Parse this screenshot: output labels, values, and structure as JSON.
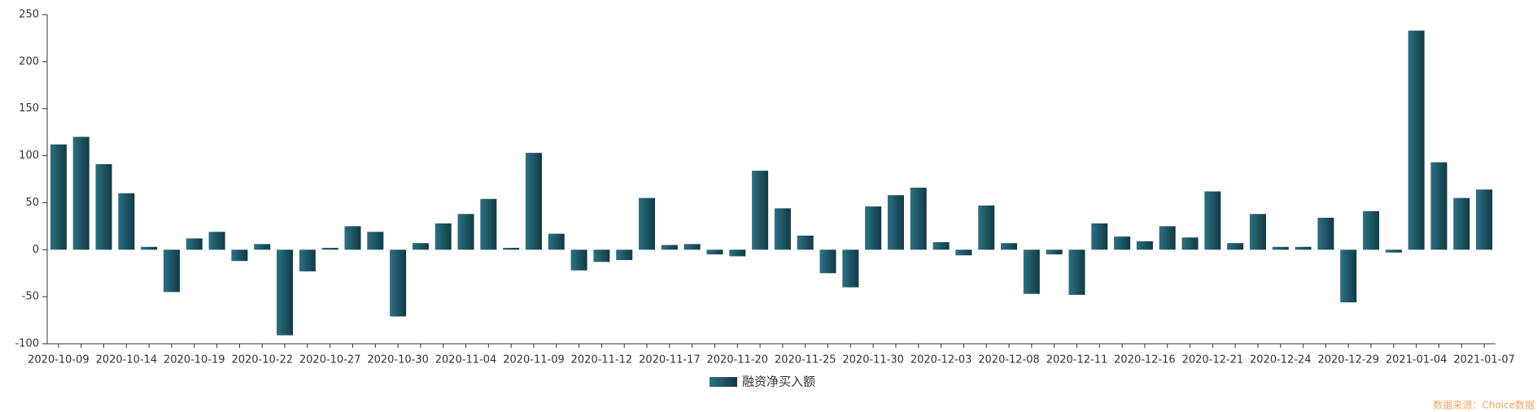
{
  "chart_data": {
    "type": "bar",
    "categories": [
      "2020-10-09",
      null,
      null,
      "2020-10-14",
      null,
      null,
      "2020-10-19",
      null,
      null,
      "2020-10-22",
      null,
      null,
      "2020-10-27",
      null,
      null,
      "2020-10-30",
      null,
      null,
      "2020-11-04",
      null,
      null,
      "2020-11-09",
      null,
      null,
      "2020-11-12",
      null,
      null,
      "2020-11-17",
      null,
      null,
      "2020-11-20",
      null,
      null,
      "2020-11-25",
      null,
      null,
      "2020-11-30",
      null,
      null,
      "2020-12-03",
      null,
      null,
      "2020-12-08",
      null,
      null,
      "2020-12-11",
      null,
      null,
      "2020-12-16",
      null,
      null,
      "2020-12-21",
      null,
      null,
      "2020-12-24",
      null,
      null,
      "2020-12-29",
      null,
      null,
      "2021-01-04",
      null,
      null,
      "2021-01-07"
    ],
    "series": [
      {
        "name": "融资净买入额",
        "color": "#2b7184",
        "values": [
          112,
          120,
          91,
          60,
          3,
          -45,
          12,
          19,
          -12,
          6,
          -91,
          -23,
          2,
          25,
          19,
          -71,
          7,
          28,
          38,
          54,
          2,
          103,
          17,
          -22,
          -13,
          -11,
          55,
          5,
          6,
          -5,
          -7,
          84,
          44,
          15,
          -25,
          -40,
          46,
          58,
          66,
          8,
          -6,
          47,
          7,
          -47,
          -5,
          -48,
          28,
          14,
          9,
          25,
          13,
          62,
          7,
          38,
          3,
          3,
          34,
          -56,
          41,
          -3,
          233,
          93,
          55,
          64
        ]
      }
    ],
    "ylim": [
      -100,
      250
    ],
    "yticks": [
      -100,
      -50,
      0,
      50,
      100,
      150,
      200,
      250
    ],
    "legend": "bottom",
    "source": "数据来源：Choice数据"
  }
}
